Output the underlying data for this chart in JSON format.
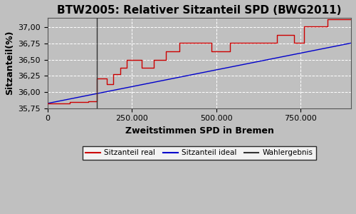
{
  "title": "BTW2005: Relativer Sitzanteil SPD (BWG2011)",
  "xlabel": "Zweitstimmen SPD in Bremen",
  "ylabel": "Sitzanteil(%)",
  "background_color": "#c0c0c0",
  "fig_bg_color": "#c0c0c0",
  "x_max": 900000,
  "x_ticks": [
    0,
    250000,
    500000,
    750000
  ],
  "x_tick_labels": [
    "0",
    "250.000",
    "500.000",
    "750.000"
  ],
  "y_min": 35.75,
  "y_max": 37.15,
  "y_ticks": [
    35.75,
    36.0,
    36.25,
    36.5,
    36.75,
    37.0
  ],
  "y_tick_labels": [
    "35,75",
    "36,00",
    "36,25",
    "36,50",
    "36,75",
    "37,00"
  ],
  "wahlergebnis_x": 147000,
  "real_color": "#cc0000",
  "ideal_color": "#0000cc",
  "wahlergebnis_color": "#333333",
  "legend_labels": [
    "Sitzanteil real",
    "Sitzanteil ideal",
    "Wahlergebnis"
  ],
  "title_fontsize": 11,
  "label_fontsize": 9,
  "tick_fontsize": 8,
  "real_steps": [
    [
      0,
      35.825
    ],
    [
      65000,
      35.825
    ],
    [
      65000,
      35.845
    ],
    [
      120000,
      35.845
    ],
    [
      120000,
      35.86
    ],
    [
      147000,
      35.86
    ],
    [
      147000,
      36.21
    ],
    [
      175000,
      36.21
    ],
    [
      175000,
      36.12
    ],
    [
      195000,
      36.12
    ],
    [
      195000,
      36.27
    ],
    [
      215000,
      36.27
    ],
    [
      215000,
      36.37
    ],
    [
      235000,
      36.37
    ],
    [
      235000,
      36.495
    ],
    [
      280000,
      36.495
    ],
    [
      280000,
      36.375
    ],
    [
      315000,
      36.375
    ],
    [
      315000,
      36.495
    ],
    [
      350000,
      36.495
    ],
    [
      350000,
      36.625
    ],
    [
      390000,
      36.625
    ],
    [
      390000,
      36.755
    ],
    [
      485000,
      36.755
    ],
    [
      485000,
      36.63
    ],
    [
      540000,
      36.63
    ],
    [
      540000,
      36.755
    ],
    [
      680000,
      36.755
    ],
    [
      680000,
      36.885
    ],
    [
      730000,
      36.885
    ],
    [
      730000,
      36.755
    ],
    [
      760000,
      36.755
    ],
    [
      760000,
      37.01
    ],
    [
      830000,
      37.01
    ],
    [
      830000,
      37.12
    ],
    [
      900000,
      37.12
    ]
  ],
  "ideal_line": [
    [
      0,
      35.825
    ],
    [
      900000,
      36.755
    ]
  ]
}
